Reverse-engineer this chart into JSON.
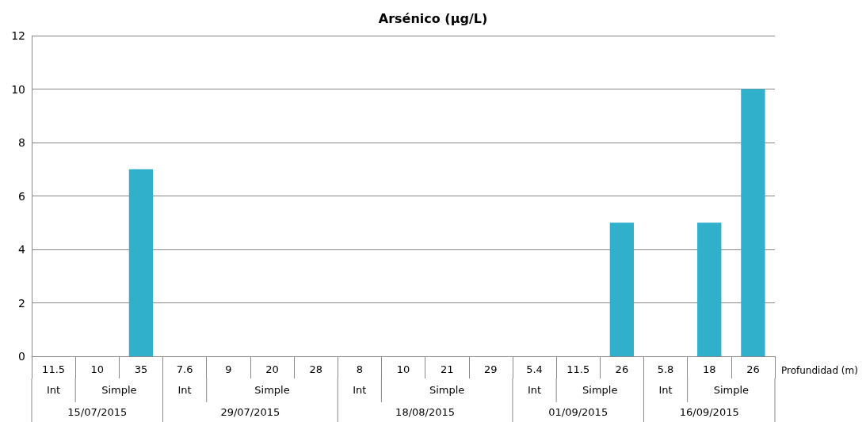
{
  "chart_data": {
    "type": "bar",
    "title": "Arsénico (µg/L)",
    "xlabel": "Profundidad (m)",
    "categories": [
      "11.5",
      "10",
      "35",
      "7.6",
      "9",
      "20",
      "28",
      "8",
      "10",
      "21",
      "29",
      "5.4",
      "11.5",
      "26",
      "5.8",
      "18",
      "26"
    ],
    "values": [
      0,
      0,
      7,
      0,
      0,
      0,
      0,
      0,
      0,
      0,
      0,
      0,
      0,
      5,
      0,
      5,
      10
    ],
    "color": "#31b0cc",
    "ylim": [
      0,
      12
    ],
    "yticks": [
      0,
      2,
      4,
      6,
      8,
      10,
      12
    ],
    "grid": "y",
    "annotations": [
      "Int",
      "Simple",
      "Int",
      "Simple",
      "Int",
      "Simple",
      "Int",
      "Simple",
      "Int",
      "Simple",
      "15/07/2015",
      "29/07/2015",
      "18/08/2015",
      "01/09/2015",
      "16/09/2015"
    ]
  }
}
